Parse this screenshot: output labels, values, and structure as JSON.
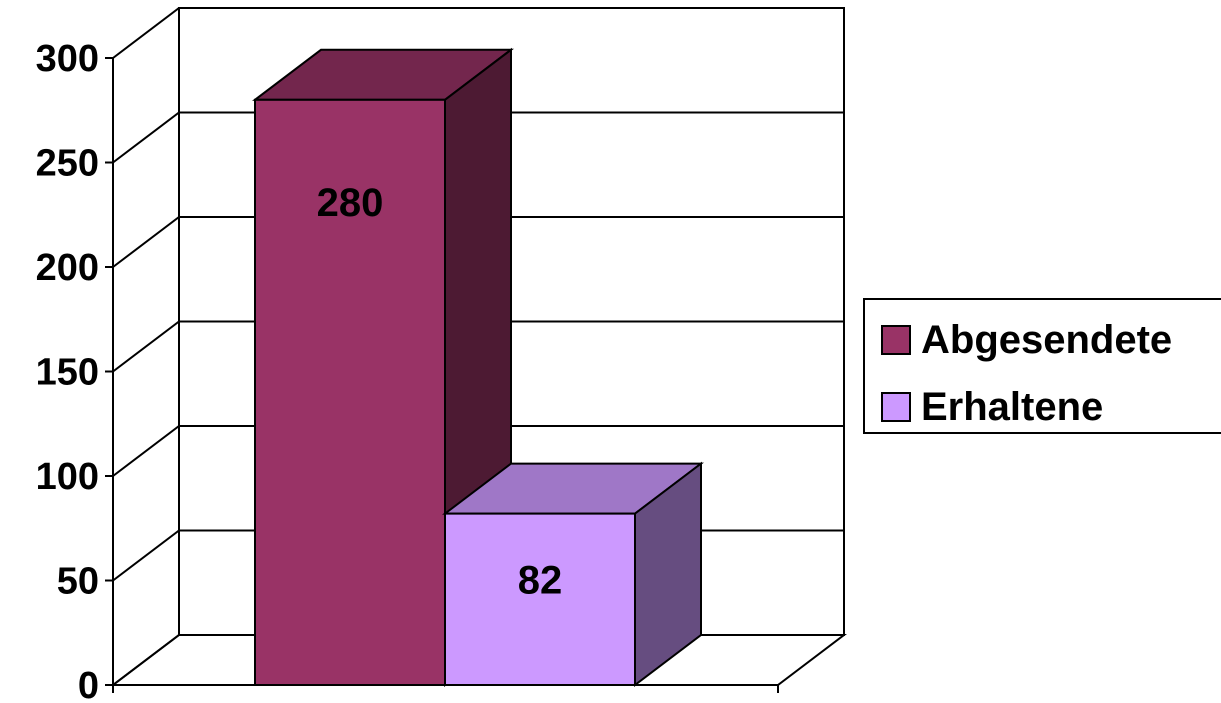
{
  "chart_data": {
    "type": "bar",
    "title": "",
    "xlabel": "",
    "ylabel": "",
    "ylim": [
      0,
      300
    ],
    "y_ticks": [
      "0",
      "50",
      "100",
      "150",
      "200",
      "250",
      "300"
    ],
    "grid": true,
    "legend_position": "right",
    "categories": [
      ""
    ],
    "series": [
      {
        "name": "Abgesendete",
        "values": [
          280
        ],
        "label": "280",
        "color": "#993366"
      },
      {
        "name": "Erhaltene",
        "values": [
          82
        ],
        "label": "82",
        "color": "#CC99FF"
      }
    ]
  }
}
